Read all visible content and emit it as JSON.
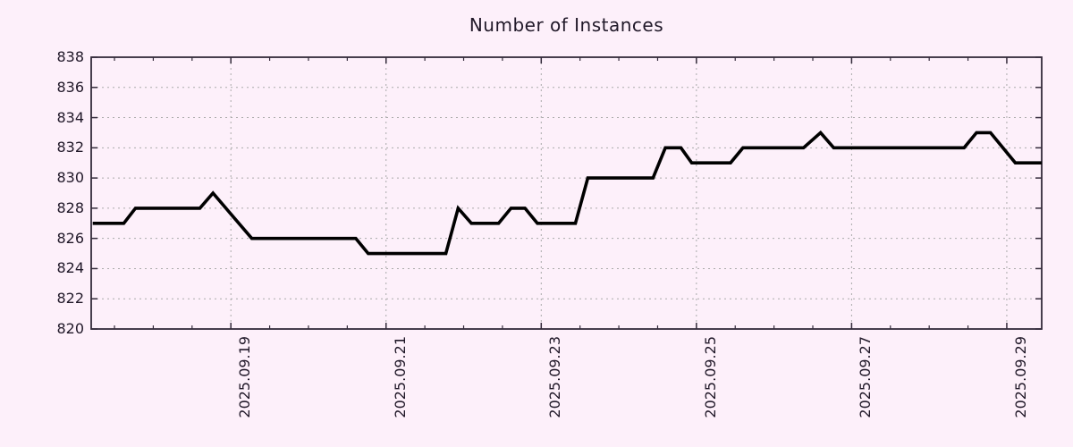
{
  "title": "Number of Instances",
  "colors": {
    "background": "#fdf0fa",
    "line": "#000000",
    "grid": "#aaaaaa",
    "axis": "#332a3a",
    "text": "#201828"
  },
  "chart_data": {
    "type": "line",
    "title": "Number of Instances",
    "xlabel": "",
    "ylabel": "",
    "x_unit": "decimal day of September 2025",
    "xlim": [
      17.2,
      29.45
    ],
    "ylim": [
      820,
      838
    ],
    "y_ticks": [
      820,
      822,
      824,
      826,
      828,
      830,
      832,
      834,
      836,
      838
    ],
    "x_major_ticks": [
      {
        "value": 19,
        "label": "2025.09.19"
      },
      {
        "value": 21,
        "label": "2025.09.21"
      },
      {
        "value": 23,
        "label": "2025.09.23"
      },
      {
        "value": 25,
        "label": "2025.09.25"
      },
      {
        "value": 27,
        "label": "2025.09.27"
      },
      {
        "value": 29,
        "label": "2025.09.29"
      }
    ],
    "x_minor_step": 0.5,
    "grid": true,
    "legend": "none",
    "series": [
      {
        "name": "instances",
        "color": "#000000",
        "points": [
          [
            17.22,
            827
          ],
          [
            17.62,
            827
          ],
          [
            17.77,
            828
          ],
          [
            18.6,
            828
          ],
          [
            18.77,
            829
          ],
          [
            19.27,
            826
          ],
          [
            20.61,
            826
          ],
          [
            20.77,
            825
          ],
          [
            21.77,
            825
          ],
          [
            21.93,
            828
          ],
          [
            22.1,
            827
          ],
          [
            22.45,
            827
          ],
          [
            22.61,
            828
          ],
          [
            22.79,
            828
          ],
          [
            22.95,
            827
          ],
          [
            23.44,
            827
          ],
          [
            23.6,
            830
          ],
          [
            24.44,
            830
          ],
          [
            24.6,
            832
          ],
          [
            24.8,
            832
          ],
          [
            24.94,
            831
          ],
          [
            25.44,
            831
          ],
          [
            25.6,
            832
          ],
          [
            26.38,
            832
          ],
          [
            26.6,
            833
          ],
          [
            26.77,
            832
          ],
          [
            28.45,
            832
          ],
          [
            28.61,
            833
          ],
          [
            28.79,
            833
          ],
          [
            29.11,
            831
          ],
          [
            29.45,
            831
          ]
        ]
      }
    ]
  }
}
